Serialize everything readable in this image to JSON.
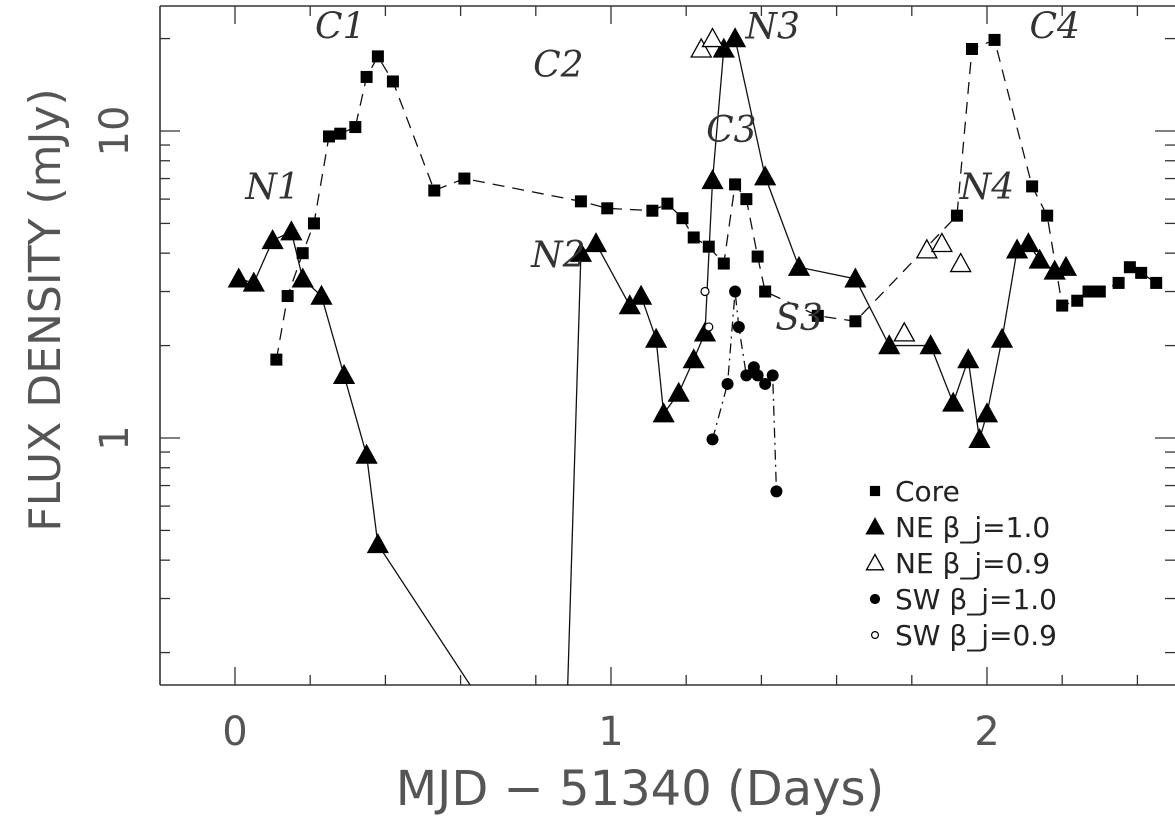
{
  "chart_data": {
    "type": "scatter",
    "xlabel": "MJD − 51340 (Days)",
    "ylabel": "FLUX DENSITY (mJy)",
    "y_scale": "log",
    "xlim": [
      -0.2,
      2.5
    ],
    "ylim": [
      0.1,
      30
    ],
    "x_tick_labels": [
      "0",
      "1",
      "2"
    ],
    "y_tick_labels": [
      "1",
      "10"
    ],
    "legend_position": "bottom-right",
    "series": [
      {
        "name": "Core",
        "marker": "filled-square",
        "line": "dashed",
        "points": [
          [
            0.11,
            1.8
          ],
          [
            0.14,
            2.9
          ],
          [
            0.18,
            4.0
          ],
          [
            0.21,
            5.0
          ],
          [
            0.25,
            9.6
          ],
          [
            0.28,
            9.8
          ],
          [
            0.32,
            10.3
          ],
          [
            0.35,
            15.0
          ],
          [
            0.38,
            17.5
          ],
          [
            0.42,
            14.5
          ],
          [
            0.53,
            6.4
          ],
          [
            0.61,
            7.0
          ],
          [
            0.92,
            5.9
          ],
          [
            0.99,
            5.6
          ],
          [
            1.11,
            5.5
          ],
          [
            1.15,
            5.8
          ],
          [
            1.19,
            5.2
          ],
          [
            1.22,
            4.5
          ],
          [
            1.26,
            4.2
          ],
          [
            1.3,
            3.7
          ],
          [
            1.33,
            6.7
          ],
          [
            1.36,
            6.0
          ],
          [
            1.39,
            3.9
          ],
          [
            1.41,
            3.0
          ],
          [
            1.55,
            2.5
          ],
          [
            1.65,
            2.4
          ],
          [
            1.92,
            5.3
          ],
          [
            1.96,
            18.5
          ],
          [
            2.02,
            19.8
          ],
          [
            2.12,
            6.6
          ],
          [
            2.16,
            5.3
          ],
          [
            2.2,
            2.7
          ],
          [
            2.24,
            2.8
          ],
          [
            2.27,
            3.0
          ],
          [
            2.3,
            3.0
          ],
          [
            2.35,
            3.2
          ],
          [
            2.38,
            3.6
          ],
          [
            2.41,
            3.45
          ],
          [
            2.45,
            3.2
          ]
        ]
      },
      {
        "name": "NE β_j=1.0",
        "marker": "filled-triangle",
        "line": "solid",
        "points": [
          [
            0.01,
            3.3
          ],
          [
            0.05,
            3.2
          ],
          [
            0.1,
            4.4
          ],
          [
            0.15,
            4.7
          ],
          [
            0.18,
            3.3
          ],
          [
            0.23,
            2.9
          ],
          [
            0.29,
            1.6
          ],
          [
            0.35,
            0.88
          ],
          [
            0.38,
            0.45
          ],
          [
            0.73,
            0.1
          ],
          [
            0.88,
            0.1
          ],
          [
            0.92,
            4.0
          ],
          [
            0.96,
            4.3
          ],
          [
            1.05,
            2.7
          ],
          [
            1.08,
            2.9
          ],
          [
            1.12,
            2.1
          ],
          [
            1.14,
            1.2
          ],
          [
            1.18,
            1.4
          ],
          [
            1.22,
            1.8
          ],
          [
            1.25,
            2.2
          ],
          [
            1.27,
            6.9
          ],
          [
            1.3,
            18.5
          ],
          [
            1.33,
            20.0
          ],
          [
            1.41,
            7.1
          ],
          [
            1.5,
            3.6
          ],
          [
            1.65,
            3.3
          ],
          [
            1.74,
            2.0
          ],
          [
            1.85,
            2.0
          ],
          [
            1.91,
            1.3
          ],
          [
            1.95,
            1.8
          ],
          [
            1.98,
            0.99
          ],
          [
            2.0,
            1.2
          ],
          [
            2.04,
            2.1
          ],
          [
            2.08,
            4.1
          ],
          [
            2.11,
            4.3
          ],
          [
            2.14,
            3.8
          ],
          [
            2.18,
            3.5
          ],
          [
            2.21,
            3.6
          ]
        ]
      },
      {
        "name": "NE β_j=0.9",
        "marker": "open-triangle",
        "line": "none",
        "points": [
          [
            1.24,
            18.5
          ],
          [
            1.27,
            20.0
          ],
          [
            1.78,
            2.2
          ],
          [
            1.84,
            4.1
          ],
          [
            1.88,
            4.3
          ],
          [
            1.93,
            3.7
          ]
        ]
      },
      {
        "name": "SW β_j=1.0",
        "marker": "filled-circle",
        "line": "dash-dot",
        "points": [
          [
            1.27,
            0.99
          ],
          [
            1.31,
            1.5
          ],
          [
            1.33,
            3.0
          ],
          [
            1.34,
            2.3
          ],
          [
            1.36,
            1.6
          ],
          [
            1.38,
            1.7
          ],
          [
            1.39,
            1.6
          ],
          [
            1.41,
            1.5
          ],
          [
            1.43,
            1.6
          ],
          [
            1.44,
            0.67
          ]
        ]
      },
      {
        "name": "SW β_j=0.9",
        "marker": "open-circle",
        "line": "none",
        "points": [
          [
            1.25,
            3.0
          ],
          [
            1.26,
            2.3
          ]
        ]
      }
    ],
    "annotations": [
      {
        "text": "C1",
        "x": 0.28,
        "y": 20.0
      },
      {
        "text": "C2",
        "x": 0.86,
        "y": 15.0
      },
      {
        "text": "C3",
        "x": 1.32,
        "y": 9.2
      },
      {
        "text": "C4",
        "x": 2.18,
        "y": 20.0
      },
      {
        "text": "N1",
        "x": 0.1,
        "y": 6.0
      },
      {
        "text": "N2",
        "x": 0.86,
        "y": 3.6
      },
      {
        "text": "N3",
        "x": 1.43,
        "y": 20.0
      },
      {
        "text": "N4",
        "x": 2.0,
        "y": 6.0
      },
      {
        "text": "S3",
        "x": 1.5,
        "y": 2.25
      }
    ]
  }
}
